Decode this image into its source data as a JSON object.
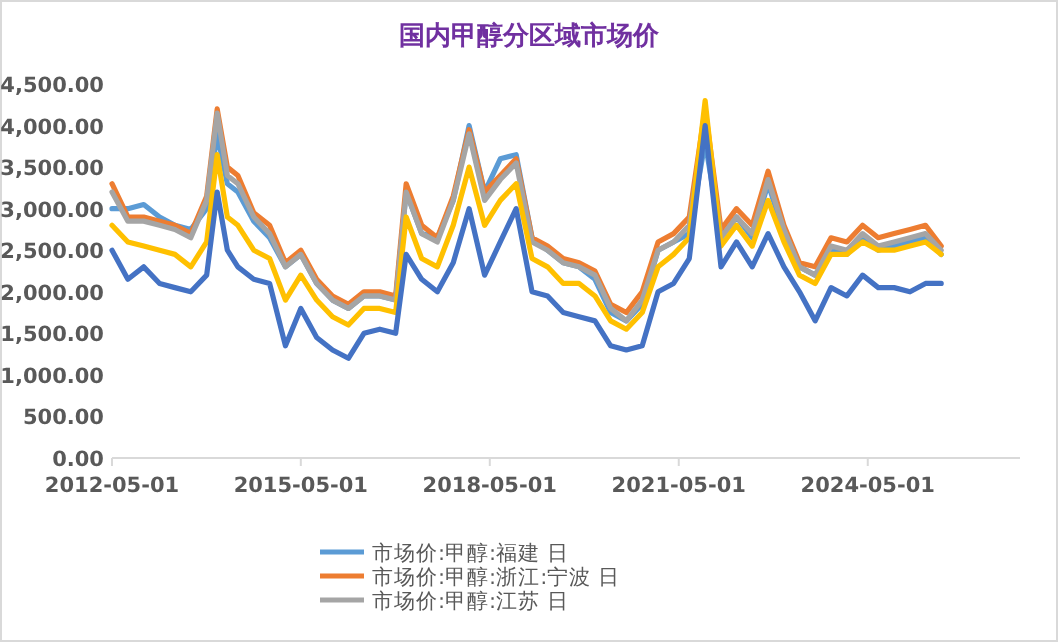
{
  "chart_data": {
    "type": "line",
    "title": "国内甲醇分区域市场价",
    "x": [
      "2012-05",
      "2012-08",
      "2012-11",
      "2013-02",
      "2013-05",
      "2013-08",
      "2013-11",
      "2014-01",
      "2014-03",
      "2014-05",
      "2014-08",
      "2014-11",
      "2015-02",
      "2015-05",
      "2015-08",
      "2015-11",
      "2016-02",
      "2016-05",
      "2016-08",
      "2016-11",
      "2017-01",
      "2017-04",
      "2017-07",
      "2017-10",
      "2018-01",
      "2018-04",
      "2018-07",
      "2018-10",
      "2019-01",
      "2019-04",
      "2019-07",
      "2019-10",
      "2020-01",
      "2020-04",
      "2020-07",
      "2020-10",
      "2021-01",
      "2021-04",
      "2021-07",
      "2021-10",
      "2022-01",
      "2022-04",
      "2022-07",
      "2022-10",
      "2023-01",
      "2023-04",
      "2023-07",
      "2023-10",
      "2024-01",
      "2024-04",
      "2024-07",
      "2024-10",
      "2025-01",
      "2025-04",
      "2025-07"
    ],
    "series": [
      {
        "name": "市场价:甲醇:福建 日",
        "color": "#5b9bd5",
        "values": [
          3000,
          3000,
          3050,
          2900,
          2800,
          2750,
          3000,
          3900,
          3300,
          3200,
          2850,
          2650,
          2300,
          2450,
          2100,
          1900,
          1800,
          1950,
          1950,
          1900,
          3200,
          2700,
          2650,
          3100,
          4000,
          3200,
          3600,
          3650,
          2650,
          2500,
          2350,
          2300,
          2150,
          1750,
          1650,
          1850,
          2500,
          2600,
          2700,
          3800,
          2650,
          2900,
          2650,
          3300,
          2700,
          2300,
          2200,
          2500,
          2450,
          2650,
          2500,
          2550,
          2600,
          2650,
          2450
        ]
      },
      {
        "name": "市场价:甲醇:浙江:宁波 日",
        "color": "#ed7d31",
        "values": [
          3300,
          2900,
          2900,
          2850,
          2800,
          2700,
          3150,
          4200,
          3500,
          3400,
          2950,
          2800,
          2350,
          2500,
          2150,
          1950,
          1850,
          2000,
          2000,
          1950,
          3300,
          2800,
          2650,
          3150,
          3950,
          3200,
          3400,
          3600,
          2650,
          2550,
          2400,
          2350,
          2250,
          1850,
          1750,
          2000,
          2600,
          2700,
          2900,
          4200,
          2750,
          3000,
          2800,
          3450,
          2800,
          2350,
          2300,
          2650,
          2600,
          2800,
          2650,
          2700,
          2750,
          2800,
          2550
        ]
      },
      {
        "name": "市场价:甲醇:江苏 日",
        "color": "#a5a5a5",
        "values": [
          3200,
          2850,
          2850,
          2800,
          2750,
          2650,
          3100,
          4150,
          3400,
          3300,
          2900,
          2700,
          2300,
          2450,
          2100,
          1900,
          1800,
          1950,
          1950,
          1900,
          3200,
          2700,
          2600,
          3100,
          3900,
          3100,
          3350,
          3550,
          2600,
          2500,
          2350,
          2300,
          2200,
          1800,
          1650,
          1900,
          2500,
          2600,
          2800,
          4100,
          2650,
          2900,
          2700,
          3350,
          2750,
          2300,
          2200,
          2550,
          2500,
          2700,
          2550,
          2600,
          2650,
          2700,
          2500
        ]
      },
      {
        "color": "#ffc000",
        "values": [
          2800,
          2600,
          2550,
          2500,
          2450,
          2300,
          2600,
          3650,
          2900,
          2800,
          2500,
          2400,
          1900,
          2200,
          1900,
          1700,
          1600,
          1800,
          1800,
          1750,
          2900,
          2400,
          2300,
          2800,
          3500,
          2800,
          3100,
          3300,
          2400,
          2300,
          2100,
          2100,
          1950,
          1650,
          1550,
          1750,
          2300,
          2450,
          2650,
          4300,
          2550,
          2800,
          2550,
          3100,
          2600,
          2200,
          2100,
          2450,
          2450,
          2600,
          2500,
          2500,
          2550,
          2600,
          2450
        ]
      },
      {
        "color": "#4472c4",
        "values": [
          2500,
          2150,
          2300,
          2100,
          2050,
          2000,
          2200,
          3200,
          2500,
          2300,
          2150,
          2100,
          1350,
          1800,
          1450,
          1300,
          1200,
          1500,
          1550,
          1500,
          2450,
          2150,
          2000,
          2350,
          3000,
          2200,
          2600,
          3000,
          2000,
          1950,
          1750,
          1700,
          1650,
          1350,
          1300,
          1350,
          2000,
          2100,
          2400,
          4000,
          2300,
          2600,
          2300,
          2700,
          2300,
          2000,
          1650,
          2050,
          1950,
          2200,
          2050,
          2050,
          2000,
          2100,
          2100
        ]
      }
    ],
    "xlim": [
      "2012-05-01",
      "2026-10-01"
    ],
    "xticks": [
      {
        "value": "2012-05-01",
        "label": "2012-05-01"
      },
      {
        "value": "2015-05-01",
        "label": "2015-05-01"
      },
      {
        "value": "2018-05-01",
        "label": "2018-05-01"
      },
      {
        "value": "2021-05-01",
        "label": "2021-05-01"
      },
      {
        "value": "2024-05-01",
        "label": "2024-05-01"
      }
    ],
    "ylim": [
      0,
      4500
    ],
    "yticks": [
      {
        "value": 0,
        "label": "0.00"
      },
      {
        "value": 500,
        "label": "500.00"
      },
      {
        "value": 1000,
        "label": "1,000.00"
      },
      {
        "value": 1500,
        "label": "1,500.00"
      },
      {
        "value": 2000,
        "label": "2,000.00"
      },
      {
        "value": 2500,
        "label": "2,500.00"
      },
      {
        "value": 3000,
        "label": "3,000.00"
      },
      {
        "value": 3500,
        "label": "3,500.00"
      },
      {
        "value": 4000,
        "label": "4,000.00"
      },
      {
        "value": 4500,
        "label": "4,500.00"
      }
    ],
    "grid": false,
    "legend": "bottom",
    "marker": "none",
    "line_style": "solid"
  }
}
